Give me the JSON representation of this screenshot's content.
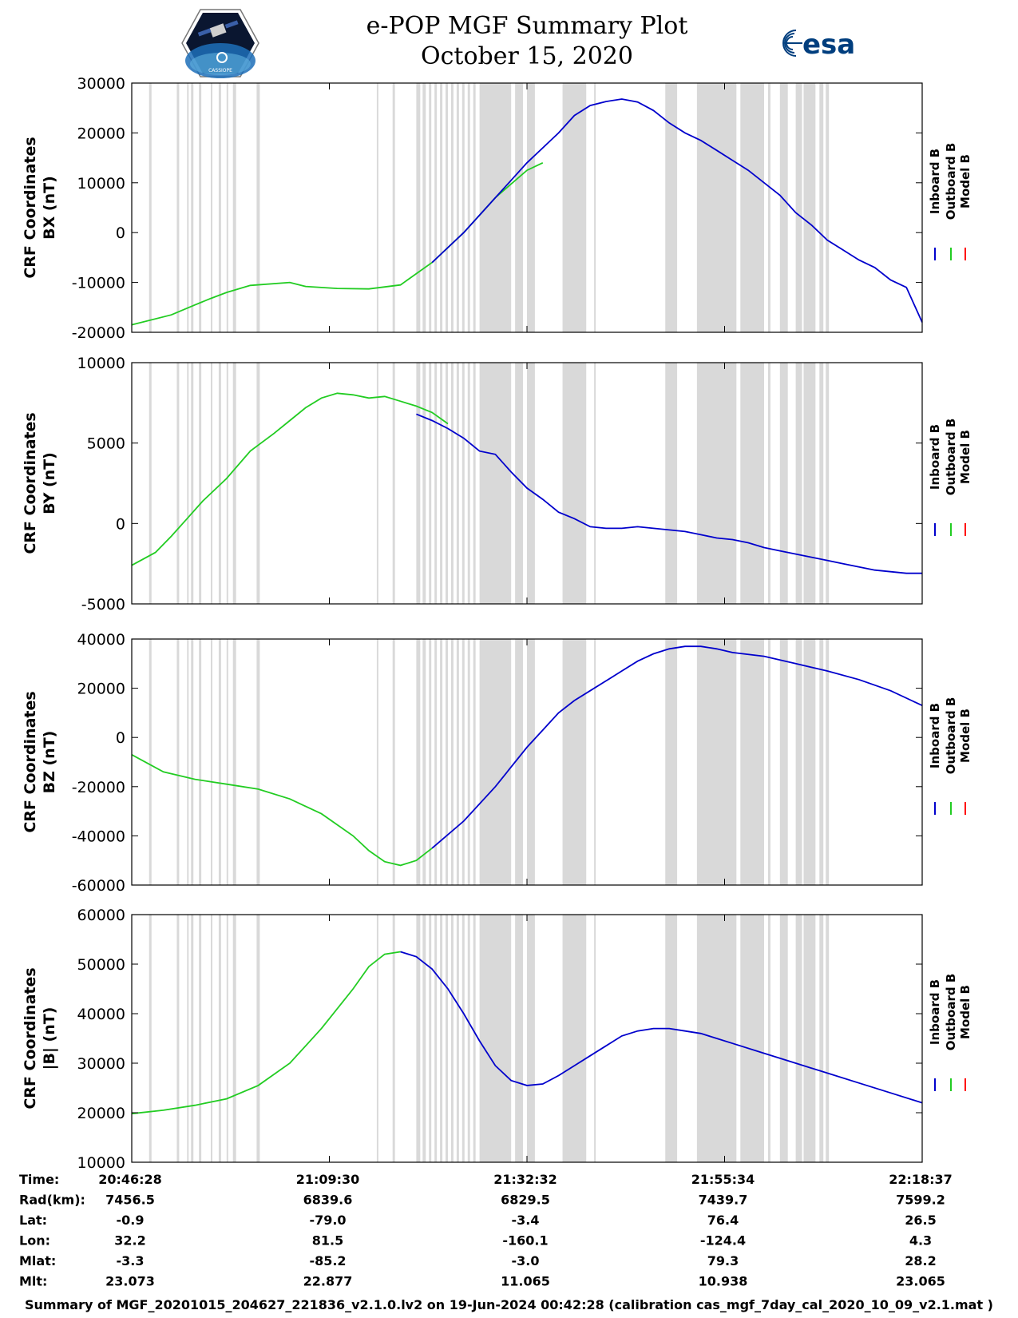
{
  "header": {
    "title_line1": "e-POP MGF Summary Plot",
    "title_line2": "October 15, 2020",
    "logo_left_text": "CASSIOPE",
    "logo_right_text": "esa"
  },
  "colors": {
    "inboard": "#0000cc",
    "outboard": "#22cc22",
    "model": "#ff0000",
    "shading": "#d9d9d9",
    "axis": "#000000"
  },
  "chart_data": [
    {
      "type": "line",
      "title": "",
      "ylabel_line1": "CRF Coordinates",
      "ylabel_line2": "BX (nT)",
      "ylim": [
        -20000,
        30000
      ],
      "yticks": [
        -20000,
        -10000,
        0,
        10000,
        20000,
        30000
      ],
      "ytick_labels": [
        "-20000",
        "-10000",
        "0",
        "10000",
        "20000",
        "30000"
      ],
      "series": [
        {
          "name": "Outboard B",
          "color_key": "outboard",
          "x": [
            0,
            0.05,
            0.08,
            0.1,
            0.12,
            0.15,
            0.2,
            0.22,
            0.26,
            0.3,
            0.34,
            0.38,
            0.42,
            0.46,
            0.5,
            0.52
          ],
          "y": [
            -18500,
            -16500,
            -14500,
            -13200,
            -12000,
            -10600,
            -10000,
            -10800,
            -11200,
            -11300,
            -10500,
            -6000,
            0,
            7000,
            12500,
            14000
          ]
        },
        {
          "name": "Inboard B",
          "color_key": "inboard",
          "x": [
            0.38,
            0.4,
            0.42,
            0.44,
            0.46,
            0.48,
            0.5,
            0.52,
            0.54,
            0.56,
            0.58,
            0.6,
            0.62,
            0.64,
            0.66,
            0.68,
            0.7,
            0.72,
            0.74,
            0.76,
            0.78,
            0.8,
            0.82,
            0.84,
            0.86,
            0.88,
            0.9,
            0.92,
            0.94,
            0.96,
            0.98,
            1.0
          ],
          "y": [
            -6000,
            -3000,
            0,
            3500,
            7000,
            10500,
            14000,
            17000,
            20000,
            23500,
            25500,
            26300,
            26800,
            26200,
            24500,
            22000,
            20000,
            18500,
            16500,
            14500,
            12500,
            10000,
            7500,
            4000,
            1500,
            -1500,
            -3500,
            -5500,
            -7000,
            -9500,
            -11000,
            -18000
          ]
        }
      ],
      "legend": [
        "Inboard B",
        "Outboard B",
        "Model B"
      ]
    },
    {
      "type": "line",
      "title": "",
      "ylabel_line1": "CRF Coordinates",
      "ylabel_line2": "BY (nT)",
      "ylim": [
        -5000,
        10000
      ],
      "yticks": [
        -5000,
        0,
        5000,
        10000
      ],
      "ytick_labels": [
        "-5000",
        "0",
        "5000",
        "10000"
      ],
      "series": [
        {
          "name": "Outboard B",
          "color_key": "outboard",
          "x": [
            0,
            0.03,
            0.05,
            0.07,
            0.09,
            0.12,
            0.15,
            0.18,
            0.2,
            0.22,
            0.24,
            0.26,
            0.28,
            0.3,
            0.32,
            0.34,
            0.36,
            0.38,
            0.4
          ],
          "y": [
            -2600,
            -1800,
            -800,
            300,
            1400,
            2800,
            4500,
            5600,
            6400,
            7200,
            7800,
            8100,
            8000,
            7800,
            7900,
            7600,
            7300,
            6900,
            6200
          ]
        },
        {
          "name": "Inboard B",
          "color_key": "inboard",
          "x": [
            0.36,
            0.38,
            0.4,
            0.42,
            0.44,
            0.46,
            0.48,
            0.5,
            0.52,
            0.54,
            0.56,
            0.58,
            0.6,
            0.62,
            0.64,
            0.66,
            0.68,
            0.7,
            0.72,
            0.74,
            0.76,
            0.78,
            0.8,
            0.82,
            0.84,
            0.86,
            0.88,
            0.9,
            0.92,
            0.94,
            0.96,
            0.98,
            1.0
          ],
          "y": [
            6800,
            6400,
            5900,
            5300,
            4500,
            4300,
            3200,
            2200,
            1500,
            700,
            300,
            -200,
            -300,
            -300,
            -200,
            -300,
            -400,
            -500,
            -700,
            -900,
            -1000,
            -1200,
            -1500,
            -1700,
            -1900,
            -2100,
            -2300,
            -2500,
            -2700,
            -2900,
            -3000,
            -3100,
            -3100
          ]
        }
      ],
      "legend": [
        "Inboard B",
        "Outboard B",
        "Model B"
      ]
    },
    {
      "type": "line",
      "title": "",
      "ylabel_line1": "CRF Coordinates",
      "ylabel_line2": "BZ (nT)",
      "ylim": [
        -60000,
        40000
      ],
      "yticks": [
        -60000,
        -40000,
        -20000,
        0,
        20000,
        40000
      ],
      "ytick_labels": [
        "-60000",
        "-40000",
        "-20000",
        "0",
        "20000",
        "40000"
      ],
      "series": [
        {
          "name": "Outboard B",
          "color_key": "outboard",
          "x": [
            0,
            0.04,
            0.08,
            0.12,
            0.16,
            0.2,
            0.24,
            0.28,
            0.3,
            0.32,
            0.34,
            0.36,
            0.38
          ],
          "y": [
            -7000,
            -14000,
            -17000,
            -19000,
            -21000,
            -25000,
            -31000,
            -40000,
            -46000,
            -50500,
            -52000,
            -50000,
            -45000
          ]
        },
        {
          "name": "Inboard B",
          "color_key": "inboard",
          "x": [
            0.38,
            0.42,
            0.46,
            0.5,
            0.52,
            0.54,
            0.56,
            0.58,
            0.6,
            0.62,
            0.64,
            0.66,
            0.68,
            0.7,
            0.72,
            0.74,
            0.76,
            0.8,
            0.84,
            0.88,
            0.92,
            0.96,
            1.0
          ],
          "y": [
            -45000,
            -34000,
            -20000,
            -4000,
            3000,
            10000,
            15000,
            19000,
            23000,
            27000,
            31000,
            34000,
            36000,
            37000,
            37000,
            36000,
            34500,
            33000,
            30000,
            27000,
            23500,
            19000,
            13000
          ]
        }
      ],
      "legend": [
        "Inboard B",
        "Outboard B",
        "Model B"
      ]
    },
    {
      "type": "line",
      "title": "",
      "ylabel_line1": "CRF Coordinates",
      "ylabel_line2": "|B| (nT)",
      "ylim": [
        10000,
        60000
      ],
      "yticks": [
        10000,
        20000,
        30000,
        40000,
        50000,
        60000
      ],
      "ytick_labels": [
        "10000",
        "20000",
        "30000",
        "40000",
        "50000",
        "60000"
      ],
      "series": [
        {
          "name": "Outboard B",
          "color_key": "outboard",
          "x": [
            0,
            0.04,
            0.08,
            0.12,
            0.16,
            0.2,
            0.24,
            0.28,
            0.3,
            0.32,
            0.34
          ],
          "y": [
            19800,
            20500,
            21500,
            22800,
            25500,
            30000,
            37000,
            45000,
            49500,
            52000,
            52500
          ]
        },
        {
          "name": "Inboard B",
          "color_key": "inboard",
          "x": [
            0.34,
            0.36,
            0.38,
            0.4,
            0.42,
            0.44,
            0.46,
            0.48,
            0.5,
            0.52,
            0.54,
            0.56,
            0.58,
            0.6,
            0.62,
            0.64,
            0.66,
            0.68,
            0.7,
            0.72,
            0.74,
            0.76,
            0.8,
            0.84,
            0.88,
            0.92,
            0.96,
            1.0
          ],
          "y": [
            52500,
            51500,
            49000,
            45000,
            40000,
            34500,
            29500,
            26500,
            25500,
            25800,
            27500,
            29500,
            31500,
            33500,
            35500,
            36500,
            37000,
            37000,
            36500,
            36000,
            35000,
            34000,
            32000,
            30000,
            28000,
            26000,
            24000,
            22000
          ]
        }
      ],
      "legend": [
        "Inboard B",
        "Outboard B",
        "Model B"
      ]
    }
  ],
  "shading_bands": [
    [
      0.022,
      0.025
    ],
    [
      0.057,
      0.06
    ],
    [
      0.075,
      0.078
    ],
    [
      0.07,
      0.072
    ],
    [
      0.085,
      0.088
    ],
    [
      0.1,
      0.102
    ],
    [
      0.11,
      0.113
    ],
    [
      0.12,
      0.122
    ],
    [
      0.128,
      0.132
    ],
    [
      0.158,
      0.162
    ],
    [
      0.31,
      0.312
    ],
    [
      0.33,
      0.333
    ],
    [
      0.36,
      0.365
    ],
    [
      0.368,
      0.372
    ],
    [
      0.376,
      0.379
    ],
    [
      0.383,
      0.386
    ],
    [
      0.39,
      0.393
    ],
    [
      0.397,
      0.4
    ],
    [
      0.404,
      0.407
    ],
    [
      0.411,
      0.414
    ],
    [
      0.418,
      0.421
    ],
    [
      0.425,
      0.428
    ],
    [
      0.432,
      0.435
    ],
    [
      0.44,
      0.48
    ],
    [
      0.485,
      0.495
    ],
    [
      0.5,
      0.51
    ],
    [
      0.545,
      0.575
    ],
    [
      0.585,
      0.587
    ],
    [
      0.675,
      0.69
    ],
    [
      0.715,
      0.765
    ],
    [
      0.77,
      0.8
    ],
    [
      0.805,
      0.808
    ],
    [
      0.82,
      0.83
    ],
    [
      0.84,
      0.848
    ],
    [
      0.85,
      0.865
    ],
    [
      0.87,
      0.875
    ],
    [
      0.878,
      0.882
    ]
  ],
  "time_axis": {
    "rows": [
      {
        "label": "Time:",
        "values": [
          "20:46:28",
          "21:09:30",
          "21:32:32",
          "21:55:34",
          "22:18:37"
        ]
      },
      {
        "label": "Rad(km):",
        "values": [
          "7456.5",
          "6839.6",
          "6829.5",
          "7439.7",
          "7599.2"
        ]
      },
      {
        "label": "Lat:",
        "values": [
          "-0.9",
          "-79.0",
          "-3.4",
          "76.4",
          "26.5"
        ]
      },
      {
        "label": "Lon:",
        "values": [
          "32.2",
          "81.5",
          "-160.1",
          "-124.4",
          "4.3"
        ]
      },
      {
        "label": "Mlat:",
        "values": [
          "-3.3",
          "-85.2",
          "-3.0",
          "79.3",
          "28.2"
        ]
      },
      {
        "label": "Mlt:",
        "values": [
          "23.073",
          "22.877",
          "11.065",
          "10.938",
          "23.065"
        ]
      }
    ],
    "tick_fractions": [
      0,
      0.25,
      0.5,
      0.75,
      1.0
    ]
  },
  "footer": {
    "text": "Summary of MGF_20201015_204627_221836_v2.1.0.lv2 on 19-Jun-2024 00:42:28 (calibration cas_mgf_7day_cal_2020_10_09_v2.1.mat )"
  }
}
